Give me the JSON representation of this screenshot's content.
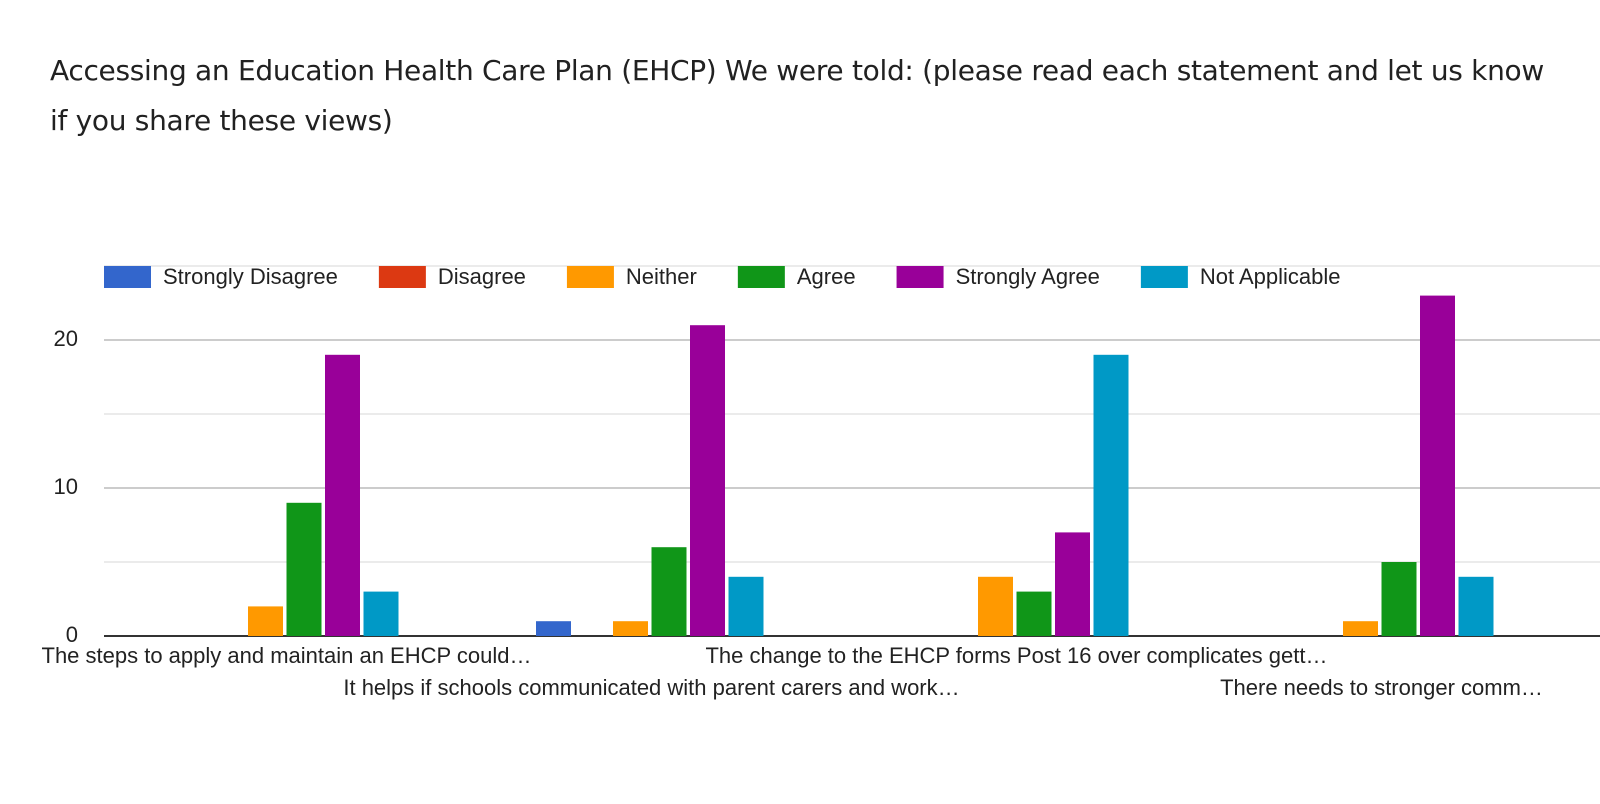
{
  "chart_data": {
    "type": "bar",
    "title": "Accessing an Education Health Care Plan (EHCP)   We were told:   (please read each statement and let us know if you share these views)",
    "categories": [
      "The steps to apply and maintain an EHCP could…",
      "It helps if schools communicated with parent carers and work…",
      "The change to the EHCP forms Post 16 over complicates gett…",
      "There needs to stronger comm…"
    ],
    "series": [
      {
        "name": "Strongly Disagree",
        "color": "#3366cc",
        "values": [
          0,
          1,
          0,
          0
        ]
      },
      {
        "name": "Disagree",
        "color": "#dc3912",
        "values": [
          0,
          0,
          0,
          0
        ]
      },
      {
        "name": "Neither",
        "color": "#ff9900",
        "values": [
          2,
          1,
          4,
          1
        ]
      },
      {
        "name": "Agree",
        "color": "#109618",
        "values": [
          9,
          6,
          3,
          5
        ]
      },
      {
        "name": "Strongly Agree",
        "color": "#990099",
        "values": [
          19,
          21,
          7,
          23
        ]
      },
      {
        "name": "Not Applicable",
        "color": "#0099c6",
        "values": [
          3,
          4,
          19,
          4
        ]
      }
    ],
    "ylim": [
      0,
      25
    ],
    "yticks": [
      0,
      10,
      20
    ],
    "minor_yticks": [
      5,
      15,
      25
    ],
    "grid": true,
    "legend": "top"
  }
}
